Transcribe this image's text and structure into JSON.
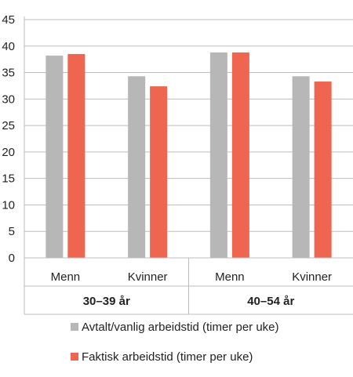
{
  "chart_data": {
    "type": "bar",
    "groups": [
      {
        "label": "30–39 år",
        "categories": [
          "Menn",
          "Kvinner"
        ]
      },
      {
        "label": "40–54 år",
        "categories": [
          "Menn",
          "Kvinner"
        ]
      }
    ],
    "categories": [
      "Menn",
      "Kvinner",
      "Menn",
      "Kvinner"
    ],
    "series": [
      {
        "name": "Avtalt/vanlig arbeidstid (timer per uke)",
        "color": "#b7b7b7",
        "values": [
          38.2,
          34.3,
          38.8,
          34.3
        ]
      },
      {
        "name": "Faktisk arbeidstid (timer per uke)",
        "color": "#ee6550",
        "values": [
          38.5,
          32.4,
          38.8,
          33.3
        ]
      }
    ],
    "ylim": [
      0,
      45
    ],
    "yticks": [
      "0",
      "5",
      "10",
      "15",
      "20",
      "25",
      "30",
      "35",
      "40",
      "45"
    ],
    "grid": true,
    "legend_position": "bottom",
    "title": "",
    "xlabel": "",
    "ylabel": ""
  }
}
